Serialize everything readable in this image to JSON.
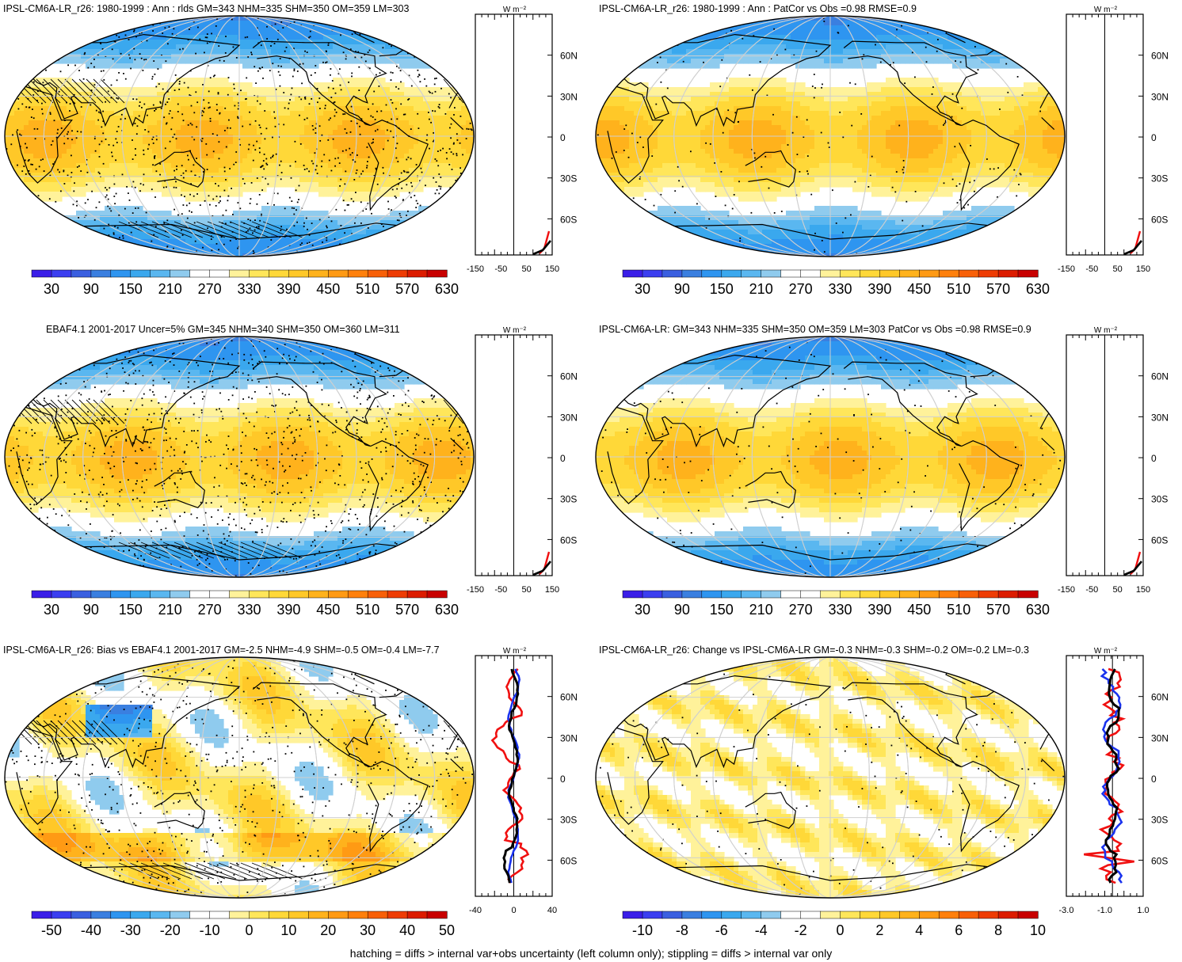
{
  "footer": "hatching = diffs > internal var+obs uncertainty (left column only); stippling = diffs > internal var only",
  "profile_unit": "W m⁻²",
  "lat_ticks": [
    "60N",
    "30N",
    "0",
    "30S",
    "60S"
  ],
  "panels": [
    {
      "title": "IPSL-CM6A-LR_r26: 1980-1999 : Ann : rlds GM=343 NHM=335 SHM=350 OM=359 LM=303",
      "colorbar_labels": [
        "30",
        "90",
        "150",
        "210",
        "270",
        "330",
        "390",
        "450",
        "510",
        "570",
        "630"
      ],
      "profile_ticks": [
        "-150",
        "-50",
        "50",
        "150"
      ],
      "palette": "abs"
    },
    {
      "title": "IPSL-CM6A-LR_r26: 1980-1999 : Ann : PatCor vs Obs =0.98 RMSE=0.9",
      "colorbar_labels": [
        "30",
        "90",
        "150",
        "210",
        "270",
        "330",
        "390",
        "450",
        "510",
        "570",
        "630"
      ],
      "profile_ticks": [
        "-150",
        "-50",
        "50",
        "150"
      ],
      "palette": "abs"
    },
    {
      "title": "EBAF4.1 2001-2017 Uncer=5% GM=345 NHM=340 SHM=350 OM=360 LM=311",
      "colorbar_labels": [
        "30",
        "90",
        "150",
        "210",
        "270",
        "330",
        "390",
        "450",
        "510",
        "570",
        "630"
      ],
      "profile_ticks": [
        "-150",
        "-50",
        "50",
        "150"
      ],
      "palette": "abs"
    },
    {
      "title": "IPSL-CM6A-LR: GM=343 NHM=335 SHM=350 OM=359 LM=303 PatCor vs Obs =0.98 RMSE=0.9",
      "colorbar_labels": [
        "30",
        "90",
        "150",
        "210",
        "270",
        "330",
        "390",
        "450",
        "510",
        "570",
        "630"
      ],
      "profile_ticks": [
        "-150",
        "-50",
        "50",
        "150"
      ],
      "palette": "abs"
    },
    {
      "title": "IPSL-CM6A-LR_r26: Bias vs EBAF4.1 2001-2017 GM=-2.5 NHM=-4.9 SHM=-0.5 OM=-0.4 LM=-7.7",
      "colorbar_labels": [
        "-50",
        "-40",
        "-30",
        "-20",
        "-10",
        "0",
        "10",
        "20",
        "30",
        "40",
        "50"
      ],
      "profile_ticks": [
        "-40",
        "0",
        "40"
      ],
      "palette": "bias"
    },
    {
      "title": "IPSL-CM6A-LR_r26: Change vs IPSL-CM6A-LR GM=-0.3 NHM=-0.3 SHM=-0.2 OM=-0.2 LM=-0.3",
      "colorbar_labels": [
        "-10",
        "-8",
        "-6",
        "-4",
        "-2",
        "0",
        "2",
        "4",
        "6",
        "8",
        "10"
      ],
      "profile_ticks": [
        "-3.0",
        "-1.0",
        "1.0"
      ],
      "palette": "change"
    }
  ],
  "colors": {
    "abs": [
      "#3a1ee8",
      "#3b3ef0",
      "#3a5fe0",
      "#3a7fe0",
      "#2e95f0",
      "#3aa8ee",
      "#5ab7f0",
      "#8fcbee",
      "#ffffff",
      "#ffffff",
      "#fff29a",
      "#ffe65a",
      "#ffd838",
      "#ffc828",
      "#ffb21c",
      "#ff9a14",
      "#ff800c",
      "#f86008",
      "#ee3c04",
      "#dc1c00",
      "#c80000"
    ],
    "bias": [
      "#3a1ee8",
      "#3b3ef0",
      "#3a5fe0",
      "#3a7fe0",
      "#2e95f0",
      "#3aa8ee",
      "#5ab7f0",
      "#8fcbee",
      "#ffffff",
      "#ffffff",
      "#fff29a",
      "#ffe65a",
      "#ffd838",
      "#ffc828",
      "#ffb21c",
      "#ff9a14",
      "#ff800c",
      "#f86008",
      "#ee3c04",
      "#dc1c00",
      "#c80000"
    ],
    "change": [
      "#3a1ee8",
      "#3b3ef0",
      "#3a5fe0",
      "#3a7fe0",
      "#2e95f0",
      "#3aa8ee",
      "#5ab7f0",
      "#8fcbee",
      "#ffffff",
      "#ffffff",
      "#fff29a",
      "#ffe65a",
      "#ffd838",
      "#ffc828",
      "#ffb21c",
      "#ff9a14",
      "#ff800c",
      "#f86008",
      "#ee3c04",
      "#dc1c00",
      "#c80000"
    ],
    "line_black": "#000000",
    "line_blue": "#1a33ee",
    "line_red": "#f01010"
  }
}
